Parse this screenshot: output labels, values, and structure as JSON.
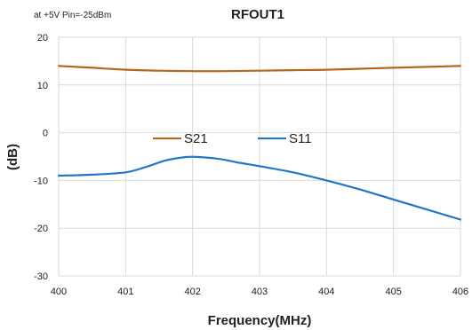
{
  "chart_data": {
    "type": "line",
    "title": "RFOUT1",
    "annotation": "at +5V  Pin=-25dBm",
    "xlabel": "Frequency(MHz)",
    "ylabel": "(dB)",
    "xlim": [
      400,
      406
    ],
    "ylim": [
      -30,
      20
    ],
    "x_ticks": [
      400,
      401,
      402,
      403,
      404,
      405,
      406
    ],
    "y_ticks": [
      20,
      10,
      0,
      -10,
      -20,
      -30
    ],
    "grid": "vertical and horizontal",
    "legend_position": "inside-center",
    "series": [
      {
        "name": "S21",
        "color": "#b5651d",
        "x": [
          400,
          400.5,
          401,
          401.5,
          402,
          402.5,
          403,
          403.5,
          404,
          404.5,
          405,
          405.5,
          406
        ],
        "y": [
          14.0,
          13.6,
          13.2,
          13.0,
          12.9,
          12.9,
          13.0,
          13.1,
          13.2,
          13.4,
          13.6,
          13.8,
          14.0
        ]
      },
      {
        "name": "S11",
        "color": "#1f77c8",
        "x": [
          400,
          400.5,
          401,
          401.3,
          401.6,
          401.9,
          402.1,
          402.4,
          402.7,
          403,
          403.5,
          404,
          404.5,
          405,
          405.5,
          406
        ],
        "y": [
          -9.0,
          -8.8,
          -8.3,
          -7.2,
          -5.8,
          -5.1,
          -5.1,
          -5.5,
          -6.3,
          -7.0,
          -8.3,
          -10.0,
          -11.9,
          -14.0,
          -16.1,
          -18.2
        ]
      }
    ]
  }
}
